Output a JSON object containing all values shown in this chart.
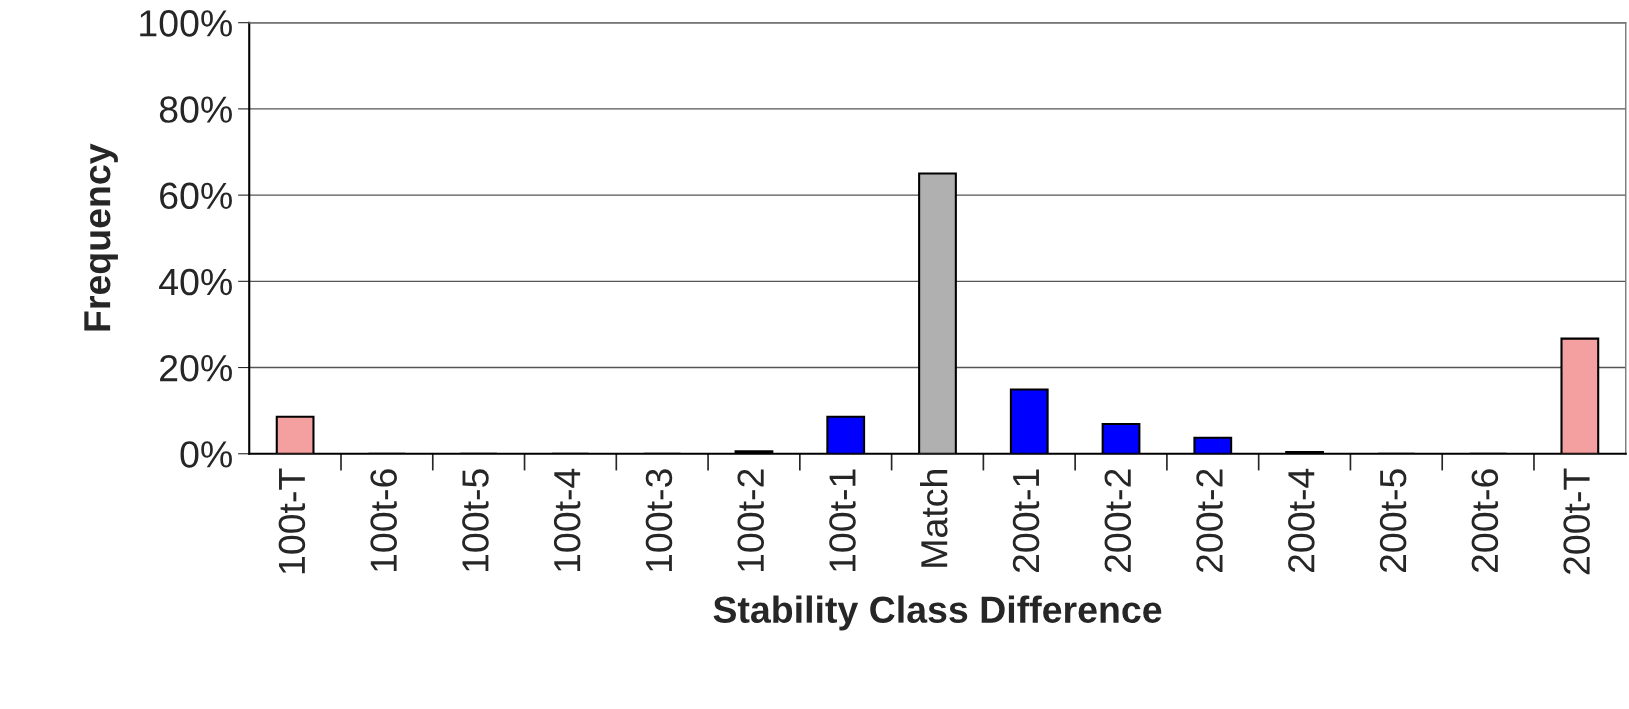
{
  "chart_data": {
    "type": "bar",
    "xlabel": "Stability Class Difference",
    "ylabel": "Frequency",
    "categories": [
      "100t-T",
      "100t-6",
      "100t-5",
      "100t-4",
      "100t-3",
      "100t-2",
      "100t-1",
      "Match",
      "200t-1",
      "200t-2",
      "200t-2",
      "200t-4",
      "200t-5",
      "200t-6",
      "200t-T"
    ],
    "values": [
      8.6,
      0,
      0,
      0,
      0,
      0.6,
      8.6,
      65.0,
      14.9,
      6.9,
      3.7,
      0.4,
      0,
      0,
      26.7
    ],
    "colors": [
      "#f4a0a0",
      "#000000",
      "#000000",
      "#000000",
      "#000000",
      "#000000",
      "#0000ff",
      "#b0b0b0",
      "#0000ff",
      "#0000ff",
      "#0000ff",
      "#000000",
      "#000000",
      "#000000",
      "#f4a0a0"
    ],
    "ylim": [
      0,
      100
    ],
    "yticks": [
      {
        "value": 0,
        "label": "0%"
      },
      {
        "value": 20,
        "label": "20%"
      },
      {
        "value": 40,
        "label": "40%"
      },
      {
        "value": 60,
        "label": "60%"
      },
      {
        "value": 80,
        "label": "80%"
      },
      {
        "value": 100,
        "label": "100%"
      }
    ],
    "grid": "y",
    "legend": false
  }
}
